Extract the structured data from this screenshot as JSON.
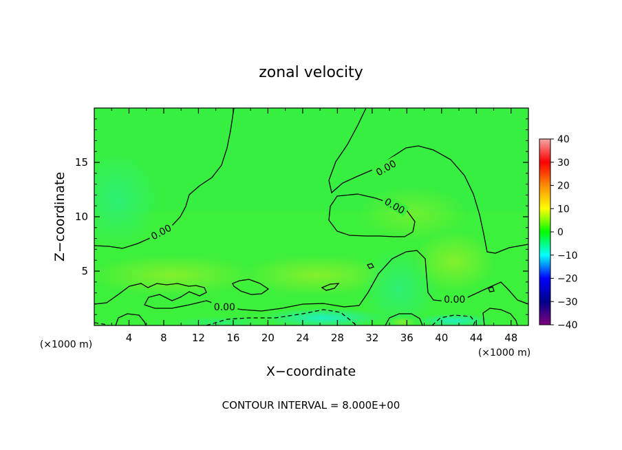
{
  "chart_data": {
    "type": "heatmap",
    "title": "zonal velocity",
    "xlabel": "X−coordinate",
    "ylabel": "Z−coordinate",
    "x_unit_left": "(×1000 m)",
    "x_unit_right": "(×1000 m)",
    "xlim": [
      0,
      50
    ],
    "ylim": [
      0,
      20
    ],
    "x_ticks": [
      4,
      8,
      12,
      16,
      20,
      24,
      28,
      32,
      36,
      40,
      44,
      48
    ],
    "y_ticks": [
      5,
      10,
      15
    ],
    "colorbar": {
      "min": -40,
      "max": 40,
      "ticks": [
        40,
        30,
        20,
        10,
        0,
        -10,
        -20,
        -30,
        -40
      ],
      "tick_labels": [
        "40",
        "30",
        "20",
        "10",
        "0",
        "−10",
        "−20",
        "−30",
        "−40"
      ],
      "colors": [
        "#f4a6a6",
        "#ff0000",
        "#ff8c00",
        "#ffff00",
        "#00ff00",
        "#00ffff",
        "#0000ff",
        "#00008b",
        "#800080"
      ]
    },
    "contour_interval": 8.0,
    "contour_labels": [
      {
        "x": 15.0,
        "z": 1.7,
        "text": "0.00"
      },
      {
        "x": 7.7,
        "z": 8.6,
        "text": "0.00"
      },
      {
        "x": 33.6,
        "z": 14.5,
        "text": "0.00"
      },
      {
        "x": 34.6,
        "z": 11.0,
        "text": "0.00"
      },
      {
        "x": 41.5,
        "z": 2.4,
        "text": "0.00"
      }
    ],
    "field_regions": [
      {
        "description": "near-surface band",
        "x": [
          0,
          50
        ],
        "z": [
          0,
          1.2
        ],
        "value": -6
      },
      {
        "description": "low-level band",
        "x": [
          0,
          50
        ],
        "z": [
          2,
          6
        ],
        "value": 4
      },
      {
        "description": "upper layer",
        "x": [
          0,
          50
        ],
        "z": [
          10,
          20
        ],
        "value": -2
      }
    ]
  },
  "footer": {
    "contour_text": "CONTOUR INTERVAL = 8.000E+00"
  },
  "colors": {
    "field_base": "#3cf03c",
    "contour": "#000000"
  }
}
